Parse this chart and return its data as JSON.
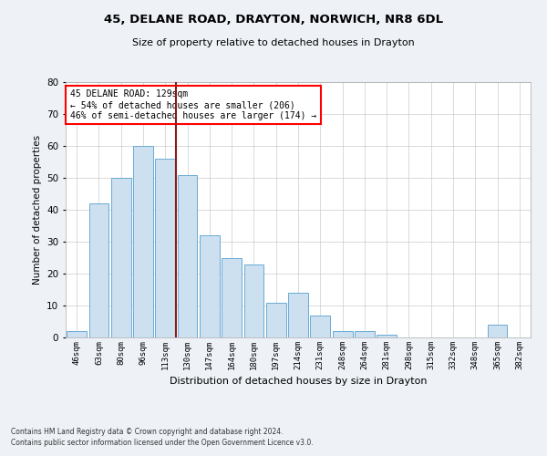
{
  "title1": "45, DELANE ROAD, DRAYTON, NORWICH, NR8 6DL",
  "title2": "Size of property relative to detached houses in Drayton",
  "xlabel": "Distribution of detached houses by size in Drayton",
  "ylabel": "Number of detached properties",
  "categories": [
    "46sqm",
    "63sqm",
    "80sqm",
    "96sqm",
    "113sqm",
    "130sqm",
    "147sqm",
    "164sqm",
    "180sqm",
    "197sqm",
    "214sqm",
    "231sqm",
    "248sqm",
    "264sqm",
    "281sqm",
    "298sqm",
    "315sqm",
    "332sqm",
    "348sqm",
    "365sqm",
    "382sqm"
  ],
  "values": [
    2,
    42,
    50,
    60,
    56,
    51,
    32,
    25,
    23,
    11,
    14,
    7,
    2,
    2,
    1,
    0,
    0,
    0,
    0,
    4,
    0
  ],
  "bar_color": "#cce0f0",
  "bar_edge_color": "#6aaad4",
  "vline_x": 4.5,
  "vline_color": "#8b1a1a",
  "annotation_text": "45 DELANE ROAD: 129sqm\n← 54% of detached houses are smaller (206)\n46% of semi-detached houses are larger (174) →",
  "annotation_box_color": "white",
  "annotation_box_edge": "red",
  "ylim": [
    0,
    80
  ],
  "yticks": [
    0,
    10,
    20,
    30,
    40,
    50,
    60,
    70,
    80
  ],
  "footer1": "Contains HM Land Registry data © Crown copyright and database right 2024.",
  "footer2": "Contains public sector information licensed under the Open Government Licence v3.0.",
  "bg_color": "#eef2f7",
  "plot_bg_color": "white"
}
